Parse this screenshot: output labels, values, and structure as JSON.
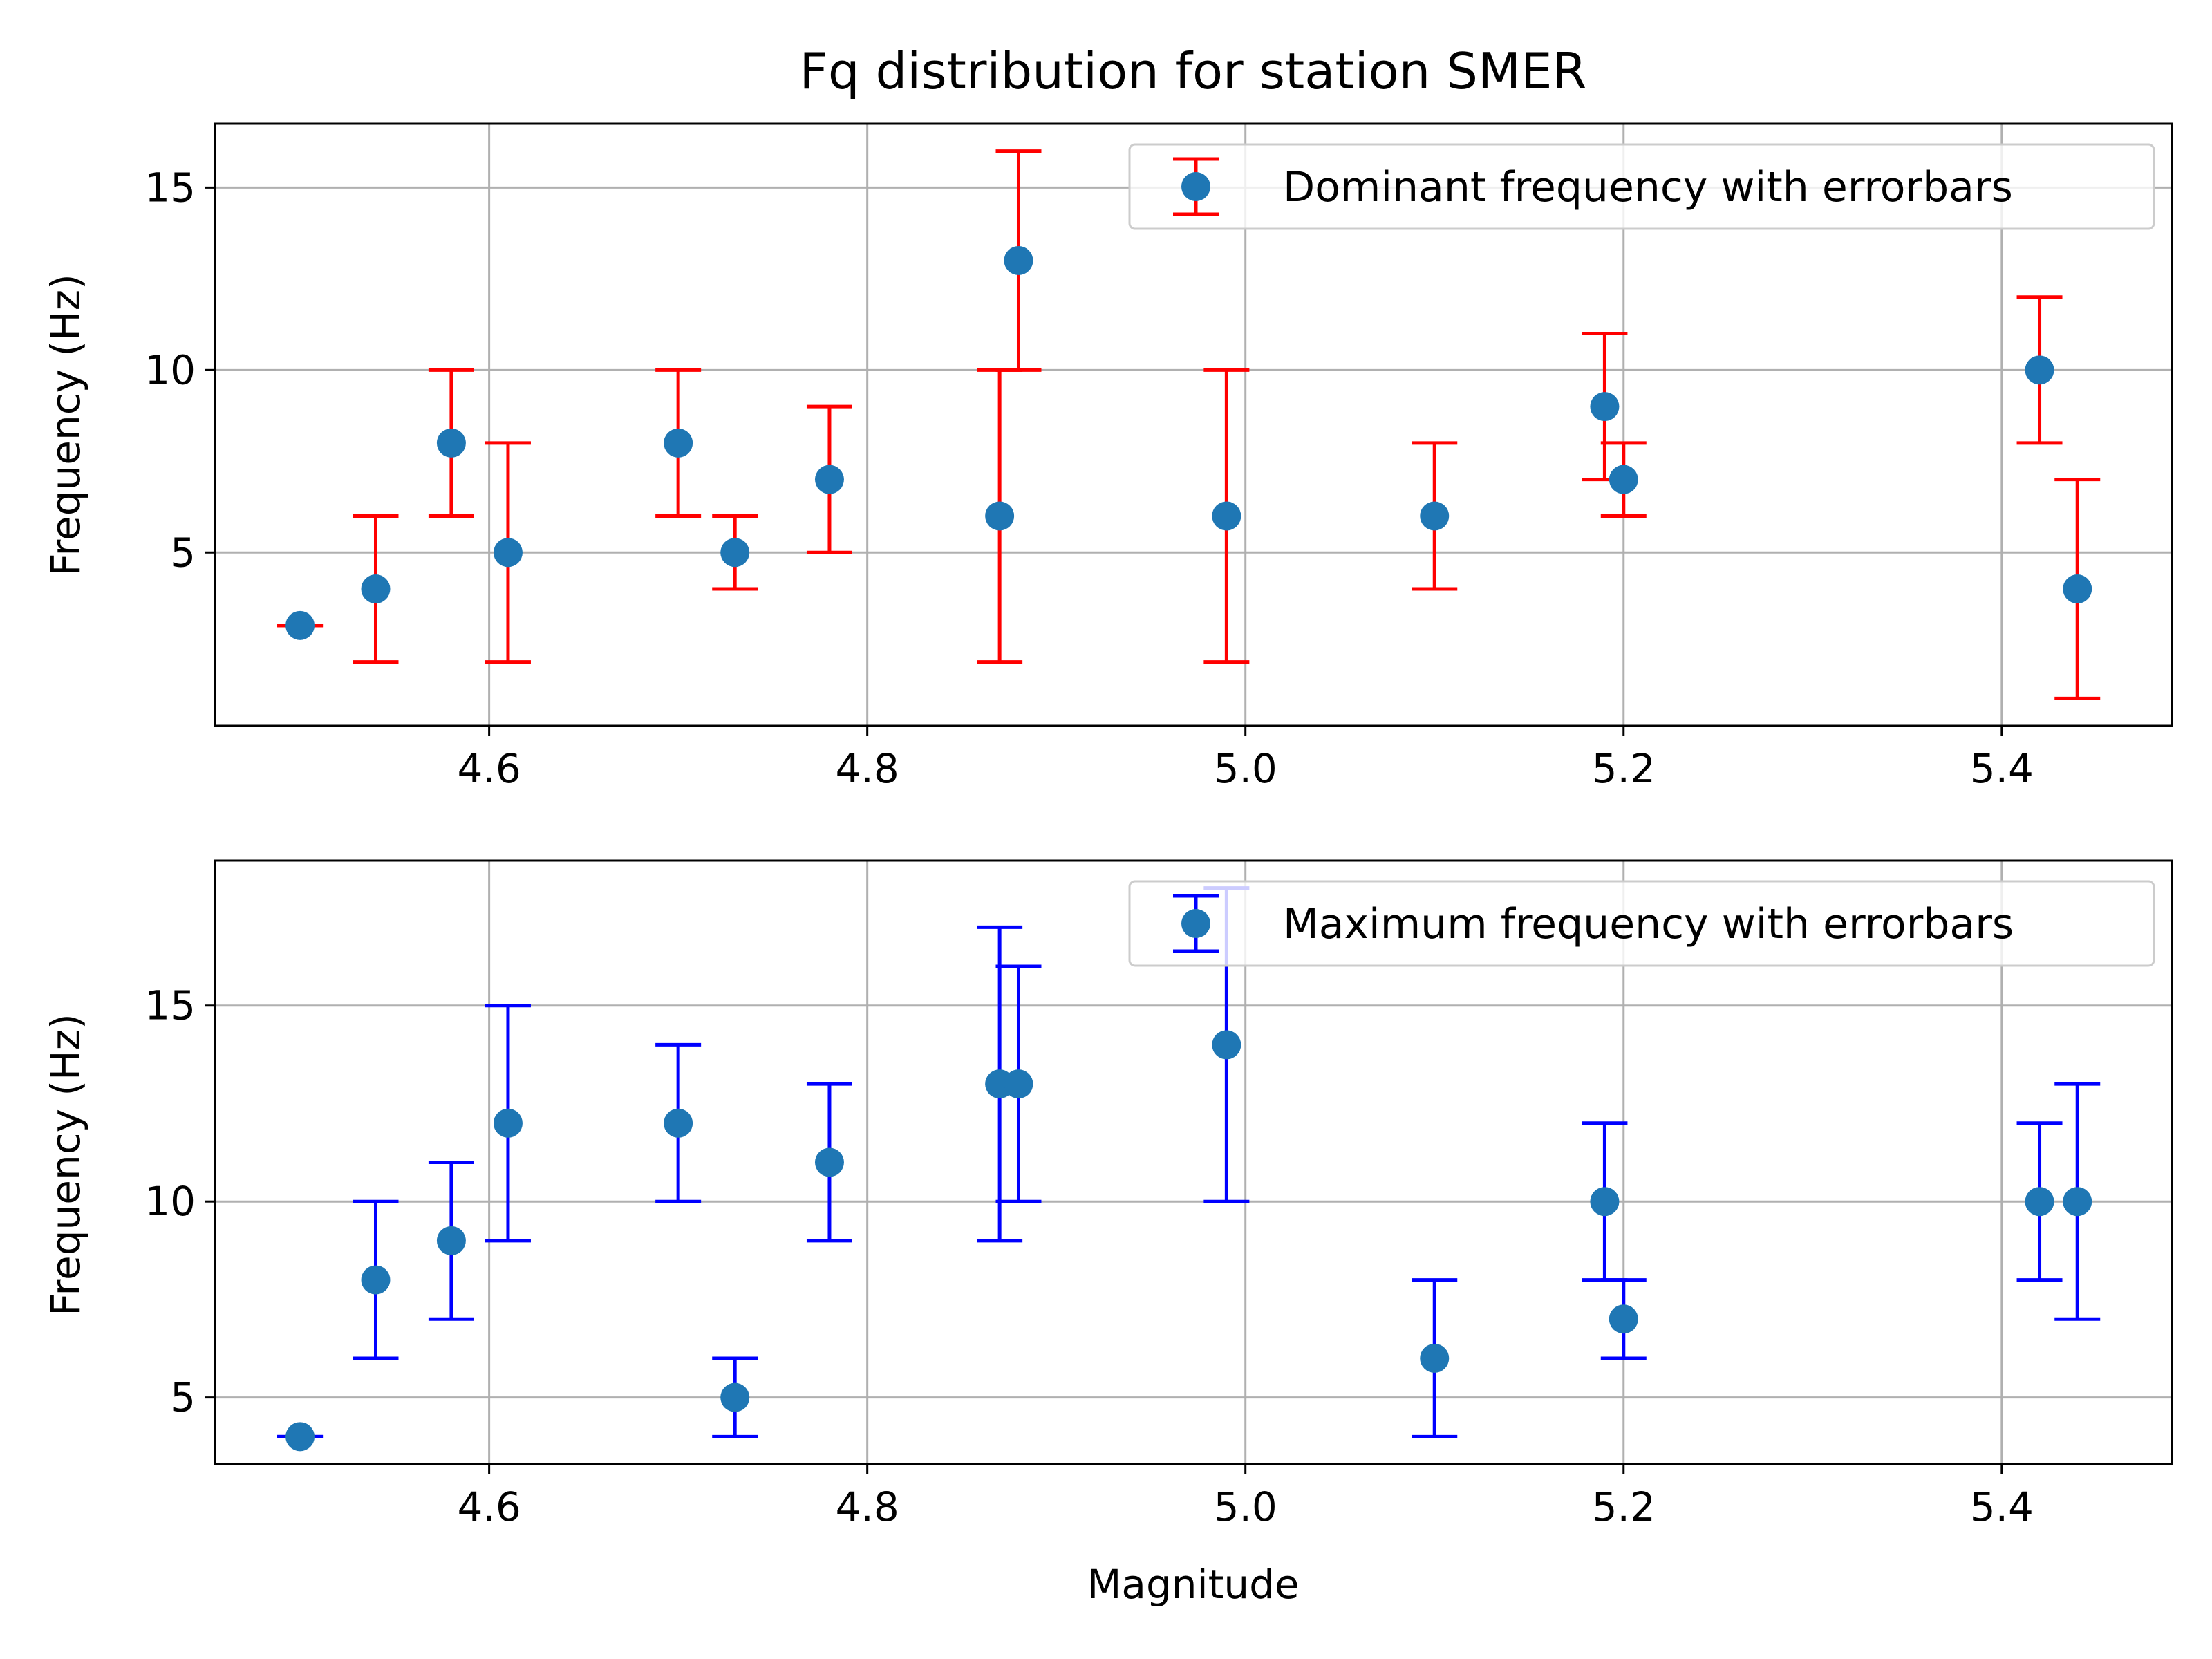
{
  "figure": {
    "title": "Fq distribution for station SMER"
  },
  "chart_data": [
    {
      "type": "scatter",
      "error_bars": true,
      "xlabel": "",
      "ylabel": "Frequency (Hz)",
      "xlim": [
        4.455,
        5.49
      ],
      "ylim": [
        0.25,
        16.75
      ],
      "xticks": [
        4.6,
        4.8,
        5.0,
        5.2,
        5.4
      ],
      "xtick_labels": [
        "4.6",
        "4.8",
        "5.0",
        "5.2",
        "5.4"
      ],
      "yticks": [
        5,
        10,
        15
      ],
      "ytick_labels": [
        "5",
        "10",
        "15"
      ],
      "grid": true,
      "legend_position": "top-right",
      "marker_color": "#1f77b4",
      "errorbar_color": "#ff0000",
      "series": [
        {
          "name": "Dominant frequency with errorbars",
          "x": [
            4.5,
            4.54,
            4.58,
            4.61,
            4.7,
            4.73,
            4.78,
            4.87,
            4.88,
            4.99,
            5.1,
            5.19,
            5.2,
            5.42,
            5.44
          ],
          "y": [
            3,
            4,
            8,
            5,
            8,
            5,
            7,
            6,
            13,
            6,
            6,
            9,
            7,
            10,
            4
          ],
          "yerr_low": [
            3,
            2,
            6,
            2,
            6,
            4,
            5,
            2,
            10,
            2,
            4,
            7,
            6,
            8,
            1
          ],
          "yerr_high": [
            3,
            6,
            10,
            8,
            10,
            6,
            9,
            10,
            16,
            10,
            8,
            11,
            8,
            12,
            7
          ]
        }
      ]
    },
    {
      "type": "scatter",
      "error_bars": true,
      "xlabel": "Magnitude",
      "ylabel": "Frequency (Hz)",
      "xlim": [
        4.455,
        5.49
      ],
      "ylim": [
        3.3,
        18.7
      ],
      "xticks": [
        4.6,
        4.8,
        5.0,
        5.2,
        5.4
      ],
      "xtick_labels": [
        "4.6",
        "4.8",
        "5.0",
        "5.2",
        "5.4"
      ],
      "yticks": [
        5,
        10,
        15
      ],
      "ytick_labels": [
        "5",
        "10",
        "15"
      ],
      "grid": true,
      "legend_position": "top-right",
      "marker_color": "#1f77b4",
      "errorbar_color": "#0000ff",
      "series": [
        {
          "name": "Maximum frequency with errorbars",
          "x": [
            4.5,
            4.54,
            4.58,
            4.61,
            4.7,
            4.73,
            4.78,
            4.87,
            4.88,
            4.99,
            5.1,
            5.19,
            5.2,
            5.42,
            5.44
          ],
          "y": [
            4,
            8,
            9,
            12,
            12,
            5,
            11,
            13,
            13,
            14,
            6,
            10,
            7,
            10,
            10
          ],
          "yerr_low": [
            4,
            6,
            7,
            9,
            10,
            4,
            9,
            9,
            10,
            10,
            4,
            8,
            6,
            8,
            7
          ],
          "yerr_high": [
            4,
            10,
            11,
            15,
            14,
            6,
            13,
            17,
            16,
            18,
            8,
            12,
            8,
            12,
            13
          ]
        }
      ]
    }
  ]
}
